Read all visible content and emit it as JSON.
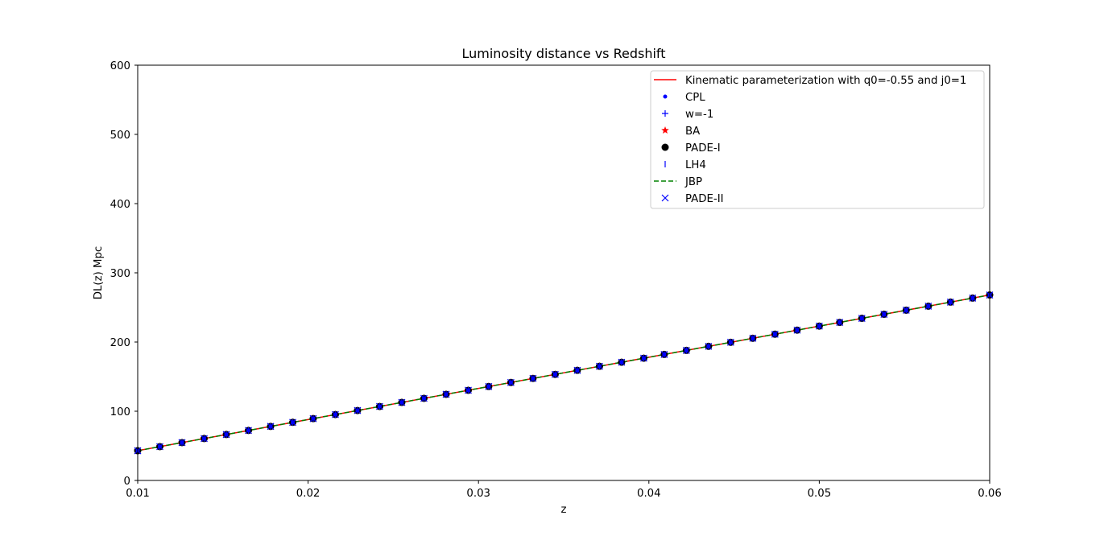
{
  "chart_data": {
    "type": "line",
    "title": "Luminosity distance vs Redshift",
    "xlabel": "z",
    "ylabel": "DL(z) Mpc",
    "xlim": [
      0.01,
      0.06
    ],
    "ylim": [
      0,
      600
    ],
    "xticks": [
      "0.01",
      "0.02",
      "0.03",
      "0.04",
      "0.05",
      "0.06"
    ],
    "yticks": [
      "0",
      "100",
      "200",
      "300",
      "400",
      "500",
      "600"
    ],
    "grid": false,
    "legend_position": "top-right",
    "x": [
      0.01,
      0.06
    ],
    "series": [
      {
        "name": "Kinematic parameterization with q0=-0.55 and j0=1",
        "style": "line",
        "color": "#ff0000",
        "values": [
          43.0,
          268.0
        ]
      },
      {
        "name": "CPL",
        "style": "point",
        "color": "#0000ff",
        "values": [
          43.0,
          268.0
        ]
      },
      {
        "name": "w=-1",
        "style": "plus",
        "color": "#0000ff",
        "values": [
          43.0,
          268.0
        ]
      },
      {
        "name": "BA",
        "style": "star",
        "color": "#ff0000",
        "values": [
          43.0,
          268.0
        ]
      },
      {
        "name": "PADE-I",
        "style": "circle",
        "color": "#000000",
        "values": [
          43.0,
          268.0
        ]
      },
      {
        "name": "LH4",
        "style": "vline",
        "color": "#0000ff",
        "values": [
          43.0,
          268.0
        ]
      },
      {
        "name": "JBP",
        "style": "dashed",
        "color": "#008000",
        "values": [
          43.0,
          268.0
        ]
      },
      {
        "name": "PADE-II",
        "style": "x",
        "color": "#0000ff",
        "values": [
          43.0,
          268.0
        ]
      }
    ],
    "marker_z": [
      0.01,
      0.0113,
      0.0126,
      0.0139,
      0.0152,
      0.0165,
      0.0178,
      0.0191,
      0.0203,
      0.0216,
      0.0229,
      0.0242,
      0.0255,
      0.0268,
      0.0281,
      0.0294,
      0.0306,
      0.0319,
      0.0332,
      0.0345,
      0.0358,
      0.0371,
      0.0384,
      0.0397,
      0.0409,
      0.0422,
      0.0435,
      0.0448,
      0.0461,
      0.0474,
      0.0487,
      0.05,
      0.0512,
      0.0525,
      0.0538,
      0.0551,
      0.0564,
      0.0577,
      0.059,
      0.06
    ]
  }
}
